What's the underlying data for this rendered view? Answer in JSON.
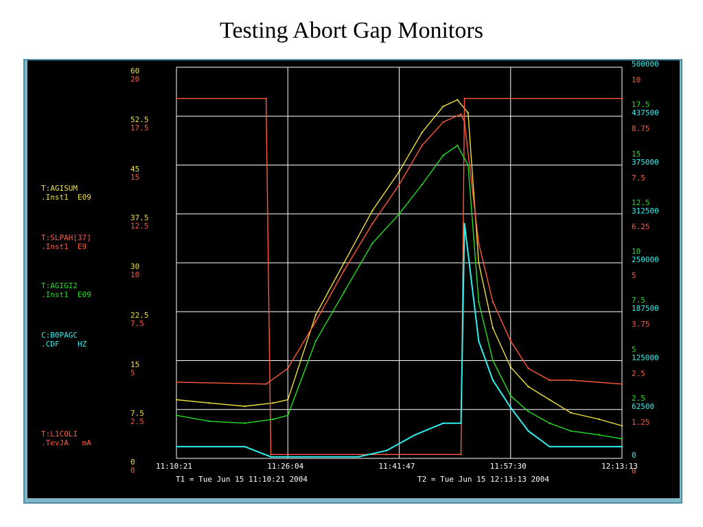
{
  "title": "Testing Abort Gap Monitors",
  "colors": {
    "yellow": "#f0e040",
    "red": "#ff5a3a",
    "green": "#22e022",
    "cyan": "#30f0f0",
    "grid": "#ffffff",
    "bg": "#000000"
  },
  "legend": [
    {
      "name": "T:AGISUM",
      "sub": ".Inst1  E09",
      "color": "#f0e040"
    },
    {
      "name": "T:SLPAH[37]",
      "sub": ".Inst1  E9",
      "color": "#ff5a3a"
    },
    {
      "name": "T:AGIGI2",
      "sub": ".Inst1  E09",
      "color": "#22e022"
    },
    {
      "name": "C:B0PAGC",
      "sub": ".CDF    HZ",
      "color": "#30f0f0"
    },
    {
      "name": "T:L1COLI",
      "sub": ".TevJA   mA",
      "color": "#ff5a3a"
    }
  ],
  "axes": {
    "left_yellow": [
      "60",
      "52.5",
      "45",
      "37.5",
      "30",
      "22.5",
      "15",
      "7.5",
      "0"
    ],
    "left_red": [
      "20",
      "17.5",
      "15",
      "12.5",
      "10",
      "7.5",
      "5",
      "2.5",
      "0"
    ],
    "right_red": [
      "10",
      "8.75",
      "7.5",
      "6.25",
      "5",
      "3.75",
      "2.5",
      "1.25",
      "0"
    ],
    "right_green": [
      "17.5",
      "15",
      "12.5",
      "10",
      "7.5",
      "5",
      "2.5"
    ],
    "right_cyan": [
      "500000",
      "437500",
      "375000",
      "312500",
      "250000",
      "187500",
      "125000",
      "62500",
      "0"
    ],
    "x_ticks": [
      "11:10:21",
      "11:26:04",
      "11:41:47",
      "11:57:30",
      "12:13:13"
    ]
  },
  "timeline": {
    "t1": "T1 = Tue Jun 15 11:10:21 2004",
    "t2": "T2 = Tue Jun 15 12:13:13 2004"
  },
  "chart_data": {
    "type": "line",
    "grid": true,
    "x_range": [
      "11:10:21",
      "12:13:13"
    ],
    "series": [
      {
        "name": "T:AGISUM",
        "axis_range": [
          0,
          60
        ],
        "x": [
          "11:10:21",
          "11:15:00",
          "11:20:00",
          "11:24:00",
          "11:26:04",
          "11:30:00",
          "11:34:00",
          "11:38:00",
          "11:41:47",
          "11:45:00",
          "11:48:00",
          "11:50:00",
          "11:51:30",
          "11:53:00",
          "11:55:00",
          "11:57:30",
          "12:00:00",
          "12:03:00",
          "12:06:00",
          "12:10:00",
          "12:13:13"
        ],
        "y": [
          9,
          8.5,
          8,
          8.5,
          9,
          22,
          30,
          38,
          44,
          50,
          54,
          55,
          53,
          30,
          20,
          14,
          11,
          9,
          7,
          6,
          5
        ]
      },
      {
        "name": "T:SLPAH[37]",
        "axis_range": [
          0,
          20
        ],
        "x": [
          "11:10:21",
          "11:23:00",
          "11:23:40",
          "11:40:00",
          "11:50:30",
          "11:51:00",
          "12:13:13"
        ],
        "y": [
          18.4,
          18.4,
          0.2,
          0.2,
          0.2,
          18.4,
          18.4
        ]
      },
      {
        "name": "T:AGIGI2",
        "axis_range": [
          0,
          20
        ],
        "x": [
          "11:10:21",
          "11:15:00",
          "11:20:00",
          "11:24:00",
          "11:26:04",
          "11:30:00",
          "11:34:00",
          "11:38:00",
          "11:41:47",
          "11:45:00",
          "11:48:00",
          "11:50:00",
          "11:51:30",
          "11:53:00",
          "11:55:00",
          "11:57:30",
          "12:00:00",
          "12:03:00",
          "12:06:00",
          "12:10:00",
          "12:13:13"
        ],
        "y": [
          2.2,
          1.9,
          1.8,
          2.0,
          2.2,
          6.0,
          8.5,
          11.0,
          12.5,
          14.0,
          15.5,
          16.0,
          15.0,
          8.0,
          5.0,
          3.2,
          2.4,
          1.8,
          1.4,
          1.2,
          1.0
        ]
      },
      {
        "name": "C:B0PAGC",
        "axis_range": [
          0,
          500000
        ],
        "x": [
          "11:10:21",
          "11:20:00",
          "11:23:40",
          "11:36:00",
          "11:40:00",
          "11:44:00",
          "11:48:00",
          "11:50:30",
          "11:51:00",
          "11:53:00",
          "11:55:00",
          "11:57:30",
          "12:00:00",
          "12:03:00",
          "12:13:13"
        ],
        "y": [
          15000,
          15000,
          2000,
          2000,
          10000,
          30000,
          45000,
          45000,
          300000,
          150000,
          100000,
          65000,
          35000,
          15000,
          15000
        ]
      },
      {
        "name": "T:L1COLI",
        "axis_range": [
          0,
          10
        ],
        "x": [
          "11:10:21",
          "11:23:00",
          "11:26:04",
          "11:30:00",
          "11:34:00",
          "11:38:00",
          "11:41:47",
          "11:45:00",
          "11:48:00",
          "11:50:30",
          "11:51:00",
          "11:53:00",
          "11:55:00",
          "11:57:30",
          "12:00:00",
          "12:03:00",
          "12:06:00",
          "12:13:13"
        ],
        "y": [
          1.95,
          1.9,
          2.3,
          3.5,
          4.8,
          6.0,
          7.0,
          8.0,
          8.6,
          8.8,
          8.6,
          5.5,
          4.0,
          3.0,
          2.3,
          2.0,
          2.0,
          1.9
        ]
      }
    ]
  }
}
